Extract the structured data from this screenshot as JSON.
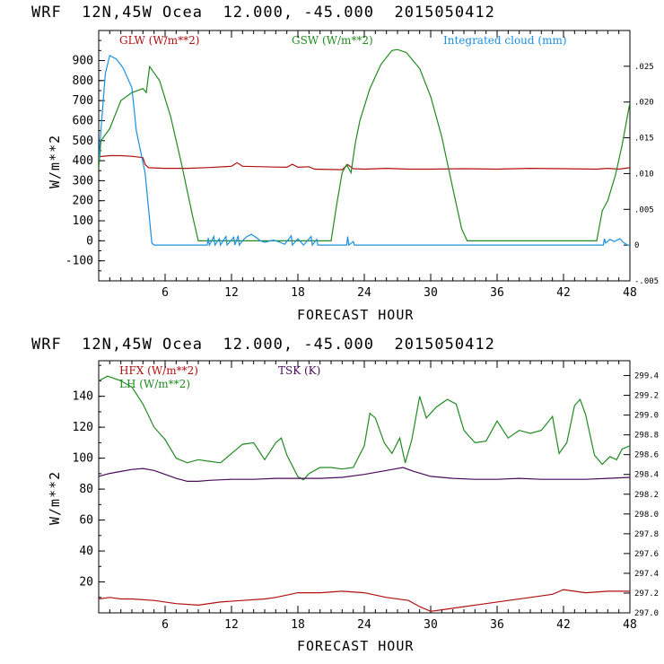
{
  "colors": {
    "red": "#b01010",
    "green": "#208a20",
    "blue": "#1a8fe0",
    "purple": "#4a0a5a"
  },
  "chart_data": [
    {
      "type": "line",
      "title": "WRF  12N,45W Ocea  12.000, -45.000  2015050412",
      "xlabel": "FORECAST HOUR",
      "ylabel": "W/m**2",
      "xlim": [
        0,
        48
      ],
      "ylim": [
        -200,
        1050
      ],
      "y2lim": [
        -0.005,
        0.03
      ],
      "x_ticks": [
        "6",
        "12",
        "18",
        "24",
        "30",
        "36",
        "42",
        "48"
      ],
      "y_ticks": [
        "-100",
        "0",
        "100",
        "200",
        "300",
        "400",
        "500",
        "600",
        "700",
        "800",
        "900"
      ],
      "y2_ticks": [
        "-.005",
        "0",
        ".005",
        ".010",
        ".015",
        ".020",
        ".025"
      ],
      "series": [
        {
          "name": "GLW (W/m**2)",
          "color": "red",
          "axis": "left",
          "points": [
            [
              0,
              420
            ],
            [
              1,
              425
            ],
            [
              2,
              425
            ],
            [
              3,
              422
            ],
            [
              4,
              415
            ],
            [
              4.2,
              380
            ],
            [
              4.5,
              365
            ],
            [
              6,
              362
            ],
            [
              8,
              362
            ],
            [
              10,
              366
            ],
            [
              12,
              372
            ],
            [
              12.5,
              390
            ],
            [
              13,
              372
            ],
            [
              16,
              368
            ],
            [
              17,
              367
            ],
            [
              17.5,
              382
            ],
            [
              18,
              367
            ],
            [
              19,
              370
            ],
            [
              19.5,
              358
            ],
            [
              21,
              356
            ],
            [
              22,
              355
            ],
            [
              22.5,
              380
            ],
            [
              23,
              360
            ],
            [
              24,
              358
            ],
            [
              26,
              362
            ],
            [
              28,
              358
            ],
            [
              30,
              358
            ],
            [
              33,
              360
            ],
            [
              36,
              358
            ],
            [
              39,
              362
            ],
            [
              42,
              360
            ],
            [
              45,
              358
            ],
            [
              46,
              362
            ],
            [
              47,
              358
            ],
            [
              48,
              365
            ]
          ]
        },
        {
          "name": "GSW (W/m**2)",
          "color": "green",
          "axis": "left",
          "points": [
            [
              0,
              360
            ],
            [
              0.2,
              500
            ],
            [
              1,
              560
            ],
            [
              2,
              700
            ],
            [
              3,
              740
            ],
            [
              4,
              760
            ],
            [
              4.3,
              740
            ],
            [
              4.6,
              870
            ],
            [
              5.5,
              800
            ],
            [
              6.5,
              620
            ],
            [
              7.5,
              380
            ],
            [
              8.5,
              120
            ],
            [
              9,
              0
            ],
            [
              21,
              0
            ],
            [
              21.5,
              180
            ],
            [
              22,
              340
            ],
            [
              22.4,
              380
            ],
            [
              22.8,
              340
            ],
            [
              23.2,
              490
            ],
            [
              23.6,
              600
            ],
            [
              24.5,
              760
            ],
            [
              25.5,
              880
            ],
            [
              26.5,
              950
            ],
            [
              27,
              955
            ],
            [
              27.8,
              940
            ],
            [
              29,
              860
            ],
            [
              30,
              720
            ],
            [
              31,
              520
            ],
            [
              32,
              260
            ],
            [
              32.8,
              60
            ],
            [
              33.3,
              0
            ],
            [
              45,
              0
            ],
            [
              45.5,
              150
            ],
            [
              46,
              200
            ],
            [
              46.7,
              330
            ],
            [
              47.3,
              480
            ],
            [
              48,
              690
            ]
          ]
        },
        {
          "name": "Integrated cloud (mm)",
          "color": "blue",
          "axis": "right",
          "points": [
            [
              0,
              0.012
            ],
            [
              0.3,
              0.018
            ],
            [
              0.6,
              0.024
            ],
            [
              1,
              0.0265
            ],
            [
              1.6,
              0.026
            ],
            [
              2.2,
              0.0248
            ],
            [
              3,
              0.022
            ],
            [
              3.4,
              0.016
            ],
            [
              3.8,
              0.013
            ],
            [
              4.2,
              0.01
            ],
            [
              4.8,
              0.0003
            ],
            [
              5,
              0
            ],
            [
              9.8,
              0
            ],
            [
              9.9,
              0.001
            ],
            [
              10,
              0
            ],
            [
              10.4,
              0.0012
            ],
            [
              10.5,
              0
            ],
            [
              10.9,
              0.0009
            ],
            [
              11,
              0
            ],
            [
              11.5,
              0.0012
            ],
            [
              11.6,
              0
            ],
            [
              12.2,
              0.0011
            ],
            [
              12.3,
              0
            ],
            [
              12.6,
              0.0013
            ],
            [
              12.7,
              0
            ],
            [
              13.1,
              0.0008
            ],
            [
              13.4,
              0.0012
            ],
            [
              13.8,
              0.0015
            ],
            [
              14.2,
              0.0011
            ],
            [
              14.6,
              0.0006
            ],
            [
              15,
              0.0004
            ],
            [
              15.8,
              0.0007
            ],
            [
              16.4,
              0.0004
            ],
            [
              16.8,
              0.0001
            ],
            [
              17.4,
              0.0013
            ],
            [
              17.5,
              0
            ],
            [
              18,
              0.0009
            ],
            [
              18.5,
              0
            ],
            [
              19.2,
              0.0012
            ],
            [
              19.3,
              0
            ],
            [
              19.7,
              0.0008
            ],
            [
              19.8,
              0
            ],
            [
              22.4,
              0
            ],
            [
              22.5,
              0.0012
            ],
            [
              22.6,
              0
            ],
            [
              23,
              0.0005
            ],
            [
              23.1,
              0
            ],
            [
              45.6,
              0
            ],
            [
              45.7,
              0.0009
            ],
            [
              45.8,
              0.0003
            ],
            [
              46.2,
              0.0008
            ],
            [
              46.6,
              0.0005
            ],
            [
              47.1,
              0.0009
            ],
            [
              47.4,
              0.0004
            ],
            [
              47.8,
              0
            ],
            [
              48,
              0
            ]
          ]
        }
      ]
    },
    {
      "type": "line",
      "title": "WRF  12N,45W Ocea  12.000, -45.000  2015050412",
      "xlabel": "FORECAST HOUR",
      "ylabel": "W/m**2",
      "xlim": [
        0,
        48
      ],
      "ylim": [
        0,
        163
      ],
      "y2lim": [
        297.0,
        299.55
      ],
      "x_ticks": [
        "6",
        "12",
        "18",
        "24",
        "30",
        "36",
        "42",
        "48"
      ],
      "y_ticks": [
        "20",
        "40",
        "60",
        "80",
        "100",
        "120",
        "140"
      ],
      "y2_ticks": [
        "297.0",
        "297.2",
        "297.4",
        "297.6",
        "297.8",
        "298.0",
        "298.2",
        "298.4",
        "298.6",
        "298.8",
        "299.0",
        "299.2",
        "299.4"
      ],
      "series": [
        {
          "name": "HFX (W/m**2)",
          "color": "red",
          "axis": "left",
          "points": [
            [
              0,
              9
            ],
            [
              1,
              10
            ],
            [
              2,
              9
            ],
            [
              3,
              9
            ],
            [
              5,
              8
            ],
            [
              7,
              6
            ],
            [
              9,
              5
            ],
            [
              11,
              7
            ],
            [
              13,
              8
            ],
            [
              15,
              9
            ],
            [
              16,
              10
            ],
            [
              18,
              13
            ],
            [
              20,
              13
            ],
            [
              22,
              14
            ],
            [
              24,
              13
            ],
            [
              26,
              10
            ],
            [
              28,
              8
            ],
            [
              29,
              4
            ],
            [
              30,
              1
            ],
            [
              31,
              2
            ],
            [
              33,
              4
            ],
            [
              35,
              6
            ],
            [
              37,
              8
            ],
            [
              39,
              10
            ],
            [
              41,
              12
            ],
            [
              42,
              15
            ],
            [
              44,
              13
            ],
            [
              46,
              14
            ],
            [
              48,
              14
            ]
          ]
        },
        {
          "name": "LH (W/m**2)",
          "color": "green",
          "axis": "left",
          "points": [
            [
              0,
              150
            ],
            [
              0.8,
              153
            ],
            [
              2,
              150
            ],
            [
              3,
              146
            ],
            [
              4,
              135
            ],
            [
              5,
              120
            ],
            [
              6,
              112
            ],
            [
              7,
              100
            ],
            [
              8,
              97
            ],
            [
              9,
              99
            ],
            [
              10,
              98
            ],
            [
              11,
              97
            ],
            [
              12,
              103
            ],
            [
              13,
              109
            ],
            [
              14,
              110
            ],
            [
              15,
              99
            ],
            [
              16,
              110
            ],
            [
              16.5,
              113
            ],
            [
              17,
              102
            ],
            [
              18,
              88
            ],
            [
              18.5,
              86
            ],
            [
              19,
              90
            ],
            [
              20,
              94
            ],
            [
              21,
              94
            ],
            [
              22,
              93
            ],
            [
              23,
              94
            ],
            [
              24,
              108
            ],
            [
              24.5,
              129
            ],
            [
              25,
              126
            ],
            [
              25.8,
              110
            ],
            [
              26.5,
              103
            ],
            [
              27.2,
              113
            ],
            [
              27.7,
              97
            ],
            [
              28.3,
              112
            ],
            [
              29,
              140
            ],
            [
              29.6,
              126
            ],
            [
              30.5,
              133
            ],
            [
              31.5,
              138
            ],
            [
              32.3,
              135
            ],
            [
              33,
              118
            ],
            [
              34,
              110
            ],
            [
              35,
              111
            ],
            [
              36,
              124
            ],
            [
              37,
              113
            ],
            [
              38,
              118
            ],
            [
              39,
              116
            ],
            [
              40,
              118
            ],
            [
              41,
              127
            ],
            [
              41.6,
              103
            ],
            [
              42.3,
              110
            ],
            [
              43,
              134
            ],
            [
              43.5,
              138
            ],
            [
              44,
              128
            ],
            [
              44.8,
              102
            ],
            [
              45.5,
              96
            ],
            [
              46.2,
              101
            ],
            [
              46.8,
              99
            ],
            [
              47.3,
              106
            ],
            [
              48,
              108
            ]
          ]
        },
        {
          "name": "TSK (K)",
          "color": "purple",
          "axis": "right",
          "points": [
            [
              0,
              298.38
            ],
            [
              1,
              298.41
            ],
            [
              2,
              298.43
            ],
            [
              3,
              298.45
            ],
            [
              4,
              298.46
            ],
            [
              5,
              298.44
            ],
            [
              6,
              298.4
            ],
            [
              7,
              298.36
            ],
            [
              8,
              298.33
            ],
            [
              9,
              298.33
            ],
            [
              10,
              298.34
            ],
            [
              12,
              298.35
            ],
            [
              14,
              298.35
            ],
            [
              16,
              298.36
            ],
            [
              18,
              298.36
            ],
            [
              20,
              298.36
            ],
            [
              22,
              298.37
            ],
            [
              24,
              298.4
            ],
            [
              26,
              298.44
            ],
            [
              27.5,
              298.47
            ],
            [
              28.5,
              298.43
            ],
            [
              30,
              298.38
            ],
            [
              32,
              298.36
            ],
            [
              34,
              298.35
            ],
            [
              36,
              298.35
            ],
            [
              38,
              298.36
            ],
            [
              40,
              298.35
            ],
            [
              42,
              298.35
            ],
            [
              44,
              298.35
            ],
            [
              46,
              298.36
            ],
            [
              48,
              298.37
            ]
          ]
        }
      ]
    }
  ]
}
